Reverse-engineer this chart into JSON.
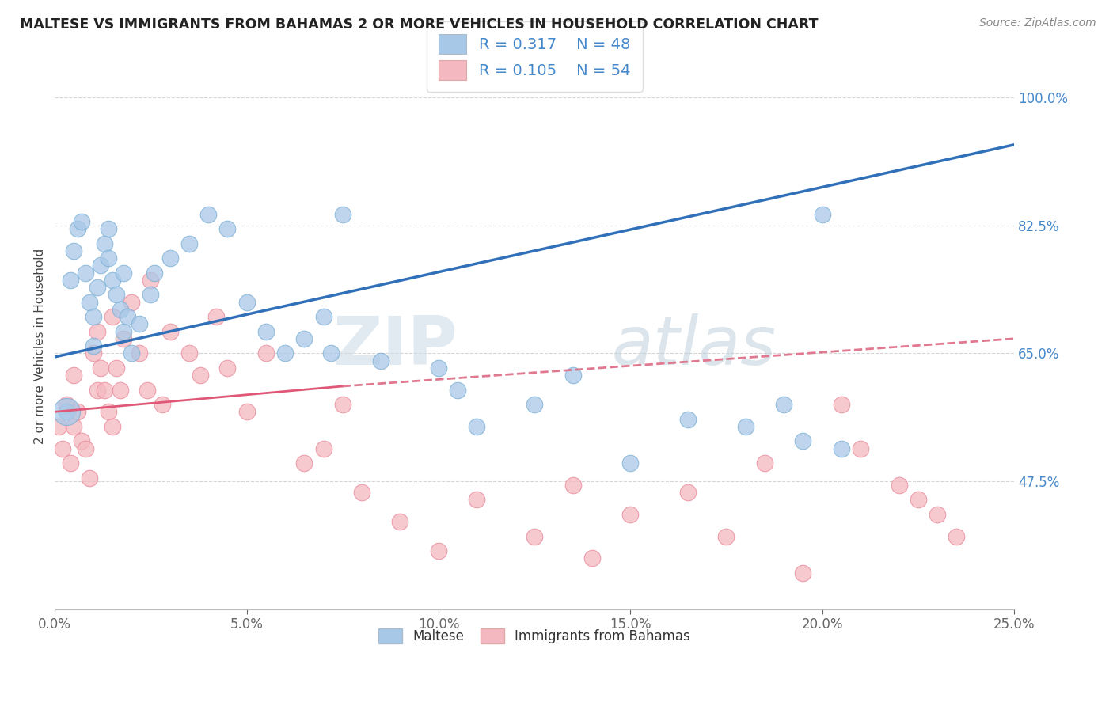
{
  "title": "MALTESE VS IMMIGRANTS FROM BAHAMAS 2 OR MORE VEHICLES IN HOUSEHOLD CORRELATION CHART",
  "source_text": "Source: ZipAtlas.com",
  "ylabel": "2 or more Vehicles in Household",
  "xlim": [
    0.0,
    25.0
  ],
  "ylim": [
    30.0,
    102.0
  ],
  "xticks": [
    0.0,
    5.0,
    10.0,
    15.0,
    20.0,
    25.0
  ],
  "xticklabels": [
    "0.0%",
    "5.0%",
    "10.0%",
    "15.0%",
    "20.0%",
    "25.0%"
  ],
  "yticks": [
    47.5,
    65.0,
    82.5,
    100.0
  ],
  "yticklabels": [
    "47.5%",
    "65.0%",
    "82.5%",
    "100.0%"
  ],
  "blue_color": "#a8c8e8",
  "blue_edge_color": "#7aafd4",
  "pink_color": "#f4b8c0",
  "pink_edge_color": "#e88898",
  "blue_line_color": "#3070b8",
  "pink_line_color": "#e05878",
  "pink_dash_color": "#e07890",
  "legend_R_blue": "R = 0.317",
  "legend_N_blue": "N = 48",
  "legend_R_pink": "R = 0.105",
  "legend_N_pink": "N = 54",
  "legend_label_blue": "Maltese",
  "legend_label_pink": "Immigrants from Bahamas",
  "watermark": "ZIPatlas",
  "blue_scatter_x": [
    0.3,
    0.4,
    0.5,
    0.6,
    0.7,
    0.8,
    0.9,
    1.0,
    1.0,
    1.1,
    1.2,
    1.3,
    1.4,
    1.4,
    1.5,
    1.6,
    1.7,
    1.8,
    1.8,
    1.9,
    2.0,
    2.2,
    2.5,
    2.6,
    3.0,
    3.5,
    4.0,
    4.5,
    5.0,
    5.5,
    6.0,
    6.5,
    7.0,
    7.2,
    7.5,
    8.5,
    10.0,
    10.5,
    11.0,
    12.5,
    13.5,
    15.0,
    16.5,
    18.0,
    19.0,
    19.5,
    20.0,
    20.5
  ],
  "blue_scatter_y": [
    57.0,
    75.0,
    79.0,
    82.0,
    83.0,
    76.0,
    72.0,
    70.0,
    66.0,
    74.0,
    77.0,
    80.0,
    78.0,
    82.0,
    75.0,
    73.0,
    71.0,
    76.0,
    68.0,
    70.0,
    65.0,
    69.0,
    73.0,
    76.0,
    78.0,
    80.0,
    84.0,
    82.0,
    72.0,
    68.0,
    65.0,
    67.0,
    70.0,
    65.0,
    84.0,
    64.0,
    63.0,
    60.0,
    55.0,
    58.0,
    62.0,
    50.0,
    56.0,
    55.0,
    58.0,
    53.0,
    84.0,
    52.0
  ],
  "pink_scatter_x": [
    0.1,
    0.2,
    0.3,
    0.4,
    0.5,
    0.5,
    0.6,
    0.7,
    0.8,
    0.9,
    1.0,
    1.1,
    1.1,
    1.2,
    1.3,
    1.4,
    1.5,
    1.5,
    1.6,
    1.7,
    1.8,
    2.0,
    2.2,
    2.4,
    2.5,
    2.8,
    3.0,
    3.5,
    3.8,
    4.2,
    4.5,
    5.0,
    5.5,
    6.5,
    7.0,
    7.5,
    8.0,
    9.0,
    10.0,
    11.0,
    12.5,
    13.5,
    14.0,
    15.0,
    16.5,
    17.5,
    18.5,
    19.5,
    20.5,
    21.0,
    22.0,
    22.5,
    23.0,
    23.5
  ],
  "pink_scatter_y": [
    55.0,
    52.0,
    58.0,
    50.0,
    62.0,
    55.0,
    57.0,
    53.0,
    52.0,
    48.0,
    65.0,
    60.0,
    68.0,
    63.0,
    60.0,
    57.0,
    70.0,
    55.0,
    63.0,
    60.0,
    67.0,
    72.0,
    65.0,
    60.0,
    75.0,
    58.0,
    68.0,
    65.0,
    62.0,
    70.0,
    63.0,
    57.0,
    65.0,
    50.0,
    52.0,
    58.0,
    46.0,
    42.0,
    38.0,
    45.0,
    40.0,
    47.0,
    37.0,
    43.0,
    46.0,
    40.0,
    50.0,
    35.0,
    58.0,
    52.0,
    47.0,
    45.0,
    43.0,
    40.0
  ],
  "blue_line_x0": 0.0,
  "blue_line_y0": 64.5,
  "blue_line_x1": 25.0,
  "blue_line_y1": 93.5,
  "pink_solid_x0": 0.0,
  "pink_solid_y0": 57.0,
  "pink_solid_x1": 7.5,
  "pink_solid_y1": 60.5,
  "pink_dash_x0": 7.5,
  "pink_dash_y0": 60.5,
  "pink_dash_x1": 25.0,
  "pink_dash_y1": 67.0
}
